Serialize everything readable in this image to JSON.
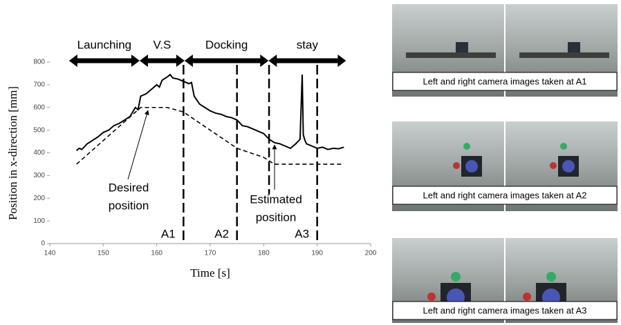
{
  "chart_data": {
    "type": "line",
    "ylabel": "Position in x-direction [mm]",
    "xlabel": "Time [s]",
    "xlim": [
      140,
      200
    ],
    "xticks": [
      140,
      150,
      160,
      170,
      180,
      190,
      200
    ],
    "ylim": [
      0,
      800
    ],
    "yticks": [
      0,
      100,
      200,
      300,
      400,
      500,
      600,
      700,
      800
    ],
    "series": [
      {
        "style": "solid",
        "color": "#000000",
        "x": [
          145,
          145.5,
          146,
          147,
          148,
          149,
          150,
          151,
          152,
          153,
          154,
          155,
          156,
          156.5,
          157,
          158,
          159,
          160,
          160.5,
          161,
          162,
          162.5,
          163,
          164,
          165,
          166,
          166.5,
          167,
          168,
          169,
          170,
          171,
          172,
          173,
          174,
          175,
          176,
          177,
          178,
          179,
          180,
          181,
          182,
          183,
          184,
          185,
          186,
          186.8,
          187.2,
          187.4,
          187.7,
          188,
          189,
          190,
          191,
          192,
          193,
          194,
          195
        ],
        "values": [
          410,
          420,
          415,
          440,
          455,
          470,
          490,
          500,
          520,
          530,
          545,
          560,
          600,
          590,
          650,
          660,
          680,
          700,
          690,
          720,
          735,
          745,
          730,
          725,
          715,
          705,
          710,
          650,
          615,
          600,
          585,
          575,
          570,
          560,
          555,
          545,
          520,
          515,
          505,
          495,
          485,
          460,
          445,
          440,
          430,
          420,
          440,
          460,
          745,
          480,
          455,
          440,
          430,
          420,
          425,
          415,
          420,
          418,
          425
        ]
      },
      {
        "style": "dashed",
        "color": "#000000",
        "x": [
          145,
          157,
          162,
          165,
          170,
          175,
          180,
          182,
          195
        ],
        "values": [
          350,
          600,
          600,
          580,
          500,
          420,
          380,
          350,
          350
        ]
      }
    ],
    "phases": [
      {
        "label": "Launching",
        "start": 143.6,
        "end": 156.8
      },
      {
        "label": "V.S",
        "start": 156.8,
        "end": 165.2
      },
      {
        "label": "Docking",
        "start": 165.2,
        "end": 180.9
      },
      {
        "label": "stay",
        "start": 180.9,
        "end": 195.4
      }
    ],
    "markers": [
      {
        "x": 165,
        "label": "A1"
      },
      {
        "x": 175,
        "label": "A2"
      },
      {
        "x": 181
      },
      {
        "x": 190,
        "label": "A3"
      }
    ],
    "annotations": [
      {
        "lines": [
          "Desired",
          "position"
        ]
      },
      {
        "lines": [
          "Estimated",
          "position"
        ]
      }
    ]
  },
  "images": [
    {
      "caption": "Left and right camera images taken at A1"
    },
    {
      "caption": "Left and right camera images taken at A2"
    },
    {
      "caption": "Left and right camera images taken at A3"
    }
  ]
}
